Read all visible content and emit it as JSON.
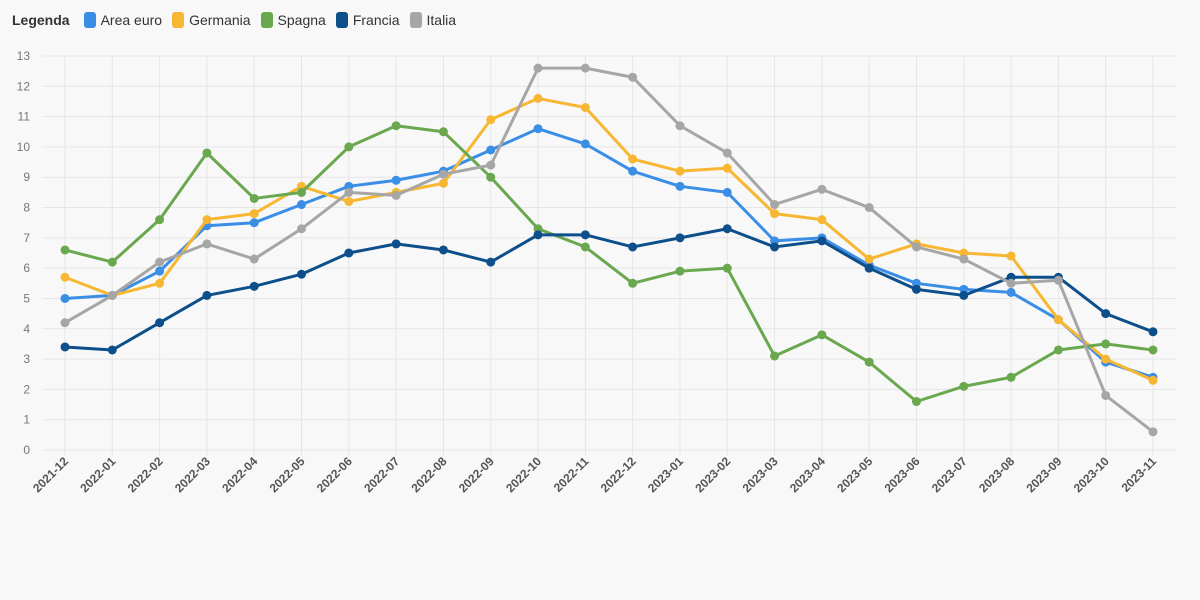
{
  "legend": {
    "title": "Legenda"
  },
  "chart_data": {
    "type": "line",
    "categories": [
      "2021-12",
      "2022-01",
      "2022-02",
      "2022-03",
      "2022-04",
      "2022-05",
      "2022-06",
      "2022-07",
      "2022-08",
      "2022-09",
      "2022-10",
      "2022-11",
      "2022-12",
      "2023-01",
      "2023-02",
      "2023-03",
      "2023-04",
      "2023-05",
      "2023-06",
      "2023-07",
      "2023-08",
      "2023-09",
      "2023-10",
      "2023-11"
    ],
    "ylim": [
      0,
      13
    ],
    "yticks": [
      0,
      1,
      2,
      3,
      4,
      5,
      6,
      7,
      8,
      9,
      10,
      11,
      12,
      13
    ],
    "grid": true,
    "legend_position": "top-left",
    "series": [
      {
        "name": "Area euro",
        "color": "#3b8ee6",
        "values": [
          5.0,
          5.1,
          5.9,
          7.4,
          7.5,
          8.1,
          8.7,
          8.9,
          9.2,
          9.9,
          10.6,
          10.1,
          9.2,
          8.7,
          8.5,
          6.9,
          7.0,
          6.1,
          5.5,
          5.3,
          5.2,
          4.3,
          2.9,
          2.4
        ]
      },
      {
        "name": "Germania",
        "color": "#f7b733",
        "values": [
          5.7,
          5.1,
          5.5,
          7.6,
          7.8,
          8.7,
          8.2,
          8.5,
          8.8,
          10.9,
          11.6,
          11.3,
          9.6,
          9.2,
          9.3,
          7.8,
          7.6,
          6.3,
          6.8,
          6.5,
          6.4,
          4.3,
          3.0,
          2.3
        ]
      },
      {
        "name": "Spagna",
        "color": "#6aa84f",
        "values": [
          6.6,
          6.2,
          7.6,
          9.8,
          8.3,
          8.5,
          10.0,
          10.7,
          10.5,
          9.0,
          7.3,
          6.7,
          5.5,
          5.9,
          6.0,
          3.1,
          3.8,
          2.9,
          1.6,
          2.1,
          2.4,
          3.3,
          3.5,
          3.3
        ]
      },
      {
        "name": "Francia",
        "color": "#0d4f8b",
        "values": [
          3.4,
          3.3,
          4.2,
          5.1,
          5.4,
          5.8,
          6.5,
          6.8,
          6.6,
          6.2,
          7.1,
          7.1,
          6.7,
          7.0,
          7.3,
          6.7,
          6.9,
          6.0,
          5.3,
          5.1,
          5.7,
          5.7,
          4.5,
          3.9
        ]
      },
      {
        "name": "Italia",
        "color": "#a6a6a6",
        "values": [
          4.2,
          5.1,
          6.2,
          6.8,
          6.3,
          7.3,
          8.5,
          8.4,
          9.1,
          9.4,
          12.6,
          12.6,
          12.3,
          10.7,
          9.8,
          8.1,
          8.6,
          8.0,
          6.7,
          6.3,
          5.5,
          5.6,
          1.8,
          0.6
        ]
      }
    ]
  }
}
